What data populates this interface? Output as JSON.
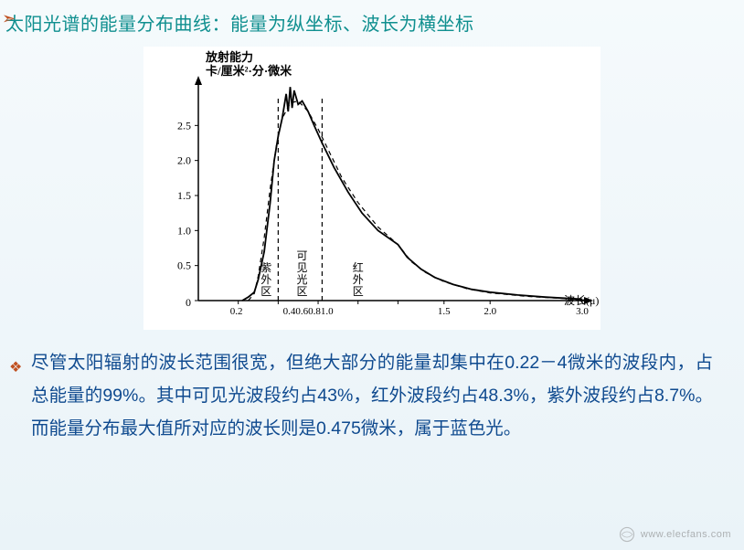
{
  "title": "太阳光谱的能量分布曲线：能量为纵坐标、波长为横坐标",
  "body": "尽管太阳辐射的波长范围很宽，但绝大部分的能量却集中在0.22－4微米的波段内，占总能量的99%。其中可见光波段约占43%，红外波段约占48.3%，紫外波段约占8.7%。而能量分布最大值所对应的波长则是0.475微米，属于蓝色光。",
  "watermark": "www.elecfans.com",
  "chart": {
    "type": "line",
    "title_lines": [
      "放射能力",
      "卡/厘米²·分·微米"
    ],
    "title_fontsize": 13,
    "ylabel": "",
    "xlabel": "波长(μ)",
    "label_fontsize": 12,
    "ylim": [
      0,
      3.0
    ],
    "yticks": [
      0,
      0.5,
      1.0,
      1.5,
      2.0,
      2.5
    ],
    "xticks": [
      0.2,
      0.4,
      0.6,
      0.81,
      1.0,
      1.5,
      2.0,
      3.0
    ],
    "xtick_labels": [
      "0.2",
      "0.40.60.81.0",
      "",
      "",
      "",
      "1.5",
      "2.0",
      "3.0"
    ],
    "background_color": "#ffffff",
    "axis_color": "#000000",
    "line_color": "#000000",
    "line_width_solid": 1.8,
    "line_width_dashed": 1.2,
    "dash_pattern": "5,4",
    "regions": [
      {
        "label": "紫外区",
        "x_center": 0.34,
        "x_boundary": 0.4
      },
      {
        "label": "可见光区",
        "x_center": 0.52,
        "x_boundary": 0.62
      },
      {
        "label": "红外区",
        "x_center": 0.8,
        "x_boundary": null
      }
    ],
    "solid_curve": [
      [
        0.22,
        0.0
      ],
      [
        0.25,
        0.05
      ],
      [
        0.28,
        0.12
      ],
      [
        0.3,
        0.3
      ],
      [
        0.33,
        0.7
      ],
      [
        0.36,
        1.4
      ],
      [
        0.38,
        2.0
      ],
      [
        0.4,
        2.35
      ],
      [
        0.42,
        2.6
      ],
      [
        0.44,
        2.95
      ],
      [
        0.45,
        2.7
      ],
      [
        0.46,
        3.05
      ],
      [
        0.47,
        2.75
      ],
      [
        0.48,
        3.0
      ],
      [
        0.5,
        2.8
      ],
      [
        0.52,
        2.85
      ],
      [
        0.55,
        2.7
      ],
      [
        0.58,
        2.5
      ],
      [
        0.62,
        2.25
      ],
      [
        0.68,
        1.9
      ],
      [
        0.75,
        1.55
      ],
      [
        0.82,
        1.25
      ],
      [
        0.9,
        1.0
      ],
      [
        1.0,
        0.8
      ],
      [
        1.1,
        0.62
      ],
      [
        1.25,
        0.45
      ],
      [
        1.4,
        0.33
      ],
      [
        1.6,
        0.23
      ],
      [
        1.8,
        0.16
      ],
      [
        2.0,
        0.12
      ],
      [
        2.3,
        0.08
      ],
      [
        2.6,
        0.05
      ],
      [
        3.0,
        0.02
      ]
    ],
    "dashed_curve": [
      [
        0.25,
        0.0
      ],
      [
        0.28,
        0.1
      ],
      [
        0.3,
        0.35
      ],
      [
        0.33,
        0.9
      ],
      [
        0.36,
        1.6
      ],
      [
        0.39,
        2.2
      ],
      [
        0.42,
        2.6
      ],
      [
        0.46,
        2.82
      ],
      [
        0.5,
        2.85
      ],
      [
        0.55,
        2.7
      ],
      [
        0.6,
        2.45
      ],
      [
        0.66,
        2.1
      ],
      [
        0.72,
        1.75
      ],
      [
        0.8,
        1.4
      ],
      [
        0.9,
        1.05
      ],
      [
        1.0,
        0.8
      ],
      [
        1.15,
        0.55
      ],
      [
        1.3,
        0.4
      ],
      [
        1.5,
        0.27
      ],
      [
        1.75,
        0.17
      ],
      [
        2.0,
        0.11
      ],
      [
        2.4,
        0.06
      ],
      [
        2.8,
        0.03
      ],
      [
        3.0,
        0.02
      ]
    ]
  }
}
